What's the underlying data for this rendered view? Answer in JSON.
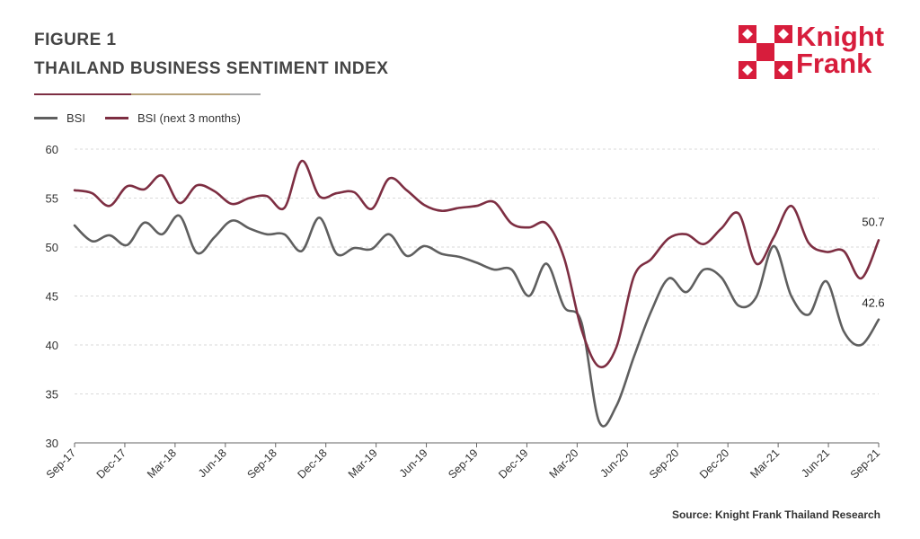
{
  "figure": {
    "label": "FIGURE 1",
    "title": "THAILAND BUSINESS SENTIMENT INDEX",
    "source": "Source: Knight Frank Thailand Research"
  },
  "logo": {
    "line1": "Knight",
    "line2": "Frank",
    "color": "#d71d3c"
  },
  "colors": {
    "bsi": "#5f5f5f",
    "bsi_next": "#7d2e42",
    "grid": "#d9d9d9",
    "rule": [
      "#7d2e42",
      "#b7a27a",
      "#a9a9a9"
    ]
  },
  "chart_data": {
    "type": "line",
    "ylim": [
      30,
      60
    ],
    "yticks": [
      30,
      35,
      40,
      45,
      50,
      55,
      60
    ],
    "grid": "horizontal dashed",
    "legend": "top-left",
    "x_tick_labels": [
      "Sep-17",
      "Dec-17",
      "Mar-18",
      "Jun-18",
      "Sep-18",
      "Dec-18",
      "Mar-19",
      "Jun-19",
      "Sep-19",
      "Dec-19",
      "Mar-20",
      "Jun-20",
      "Sep-20",
      "Dec-20",
      "Mar-21",
      "Jun-21",
      "Sep-21"
    ],
    "series": [
      {
        "name": "BSI",
        "values": [
          52.2,
          50.6,
          51.2,
          50.2,
          52.5,
          51.3,
          53.2,
          49.4,
          51.0,
          52.7,
          51.9,
          51.3,
          51.3,
          49.6,
          53.0,
          49.3,
          49.9,
          49.8,
          51.3,
          49.1,
          50.1,
          49.3,
          49.0,
          48.4,
          47.7,
          47.7,
          45.0,
          48.3,
          43.9,
          42.3,
          32.2,
          33.8,
          38.8,
          43.5,
          46.8,
          45.4,
          47.7,
          46.9,
          44.0,
          44.9,
          50.1,
          45.0,
          43.1,
          46.5,
          41.4,
          40.0,
          42.6
        ],
        "end_label": "42.6"
      },
      {
        "name": "BSI (next 3 months)",
        "values": [
          55.8,
          55.5,
          54.2,
          56.2,
          55.9,
          57.3,
          54.5,
          56.3,
          55.7,
          54.4,
          55.0,
          55.2,
          54.0,
          58.8,
          55.2,
          55.5,
          55.6,
          53.9,
          57.0,
          55.8,
          54.3,
          53.7,
          54.0,
          54.2,
          54.6,
          52.4,
          52.0,
          52.4,
          48.9,
          41.6,
          37.8,
          39.8,
          47.0,
          48.8,
          50.9,
          51.3,
          50.3,
          51.9,
          53.4,
          48.3,
          51.0,
          54.2,
          50.4,
          49.5,
          49.6,
          46.8,
          50.7
        ],
        "end_label": "50.7"
      }
    ]
  }
}
